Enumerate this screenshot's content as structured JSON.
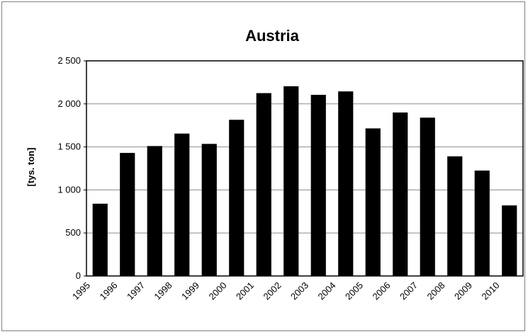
{
  "chart_data": {
    "type": "bar",
    "title": "Austria",
    "xlabel": "",
    "ylabel": "[tys. ton]",
    "ylim": [
      0,
      2500
    ],
    "yticks": [
      0,
      500,
      1000,
      1500,
      2000,
      2500
    ],
    "ytick_labels": [
      "0",
      "500",
      "1 000",
      "1 500",
      "2 000",
      "2 500"
    ],
    "categories": [
      "1995",
      "1996",
      "1997",
      "1998",
      "1999",
      "2000",
      "2001",
      "2002",
      "2003",
      "2004",
      "2005",
      "2006",
      "2007",
      "2008",
      "2009",
      "2010"
    ],
    "values": [
      840,
      1430,
      1510,
      1655,
      1535,
      1815,
      2125,
      2205,
      2105,
      2145,
      1715,
      1900,
      1840,
      1390,
      1225,
      820
    ],
    "grid": true,
    "legend": "none",
    "bar_color": "#000000"
  }
}
